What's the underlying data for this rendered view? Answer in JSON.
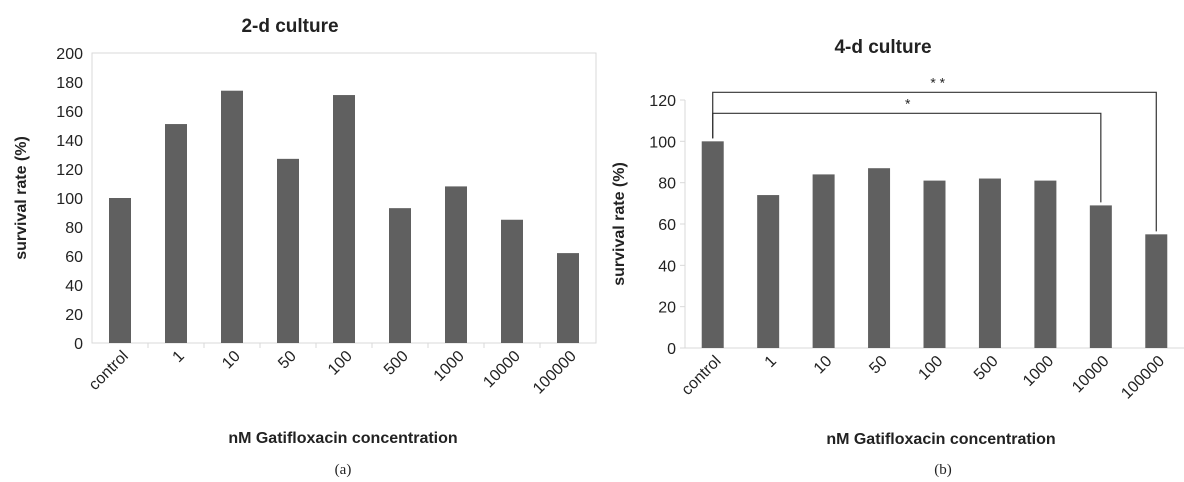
{
  "chart_data": [
    {
      "type": "bar",
      "title": "2-d culture",
      "xlabel": "nM Gatifloxacin concentration",
      "ylabel": "survival rate (%)",
      "caption": "(a)",
      "categories": [
        "control",
        "1",
        "10",
        "50",
        "100",
        "500",
        "1000",
        "10000",
        "100000"
      ],
      "values": [
        100,
        151,
        174,
        127,
        171,
        93,
        108,
        85,
        62
      ],
      "ylim": [
        0,
        200
      ],
      "yticks": [
        0,
        20,
        40,
        60,
        80,
        100,
        120,
        140,
        160,
        180,
        200
      ],
      "grid": false,
      "bar_color": "#606060"
    },
    {
      "type": "bar",
      "title": "4-d culture",
      "xlabel": "nM Gatifloxacin concentration",
      "ylabel": "survival rate (%)",
      "caption": "(b)",
      "categories": [
        "control",
        "1",
        "10",
        "50",
        "100",
        "500",
        "1000",
        "10000",
        "100000"
      ],
      "values": [
        100,
        74,
        84,
        87,
        81,
        82,
        81,
        69,
        55
      ],
      "ylim": [
        0,
        120
      ],
      "yticks": [
        0,
        20,
        40,
        60,
        80,
        100,
        120
      ],
      "grid": false,
      "bar_color": "#606060",
      "significance": [
        {
          "from": "control",
          "to": "10000",
          "label": "*"
        },
        {
          "from": "control",
          "to": "100000",
          "label": "* *"
        }
      ]
    }
  ]
}
